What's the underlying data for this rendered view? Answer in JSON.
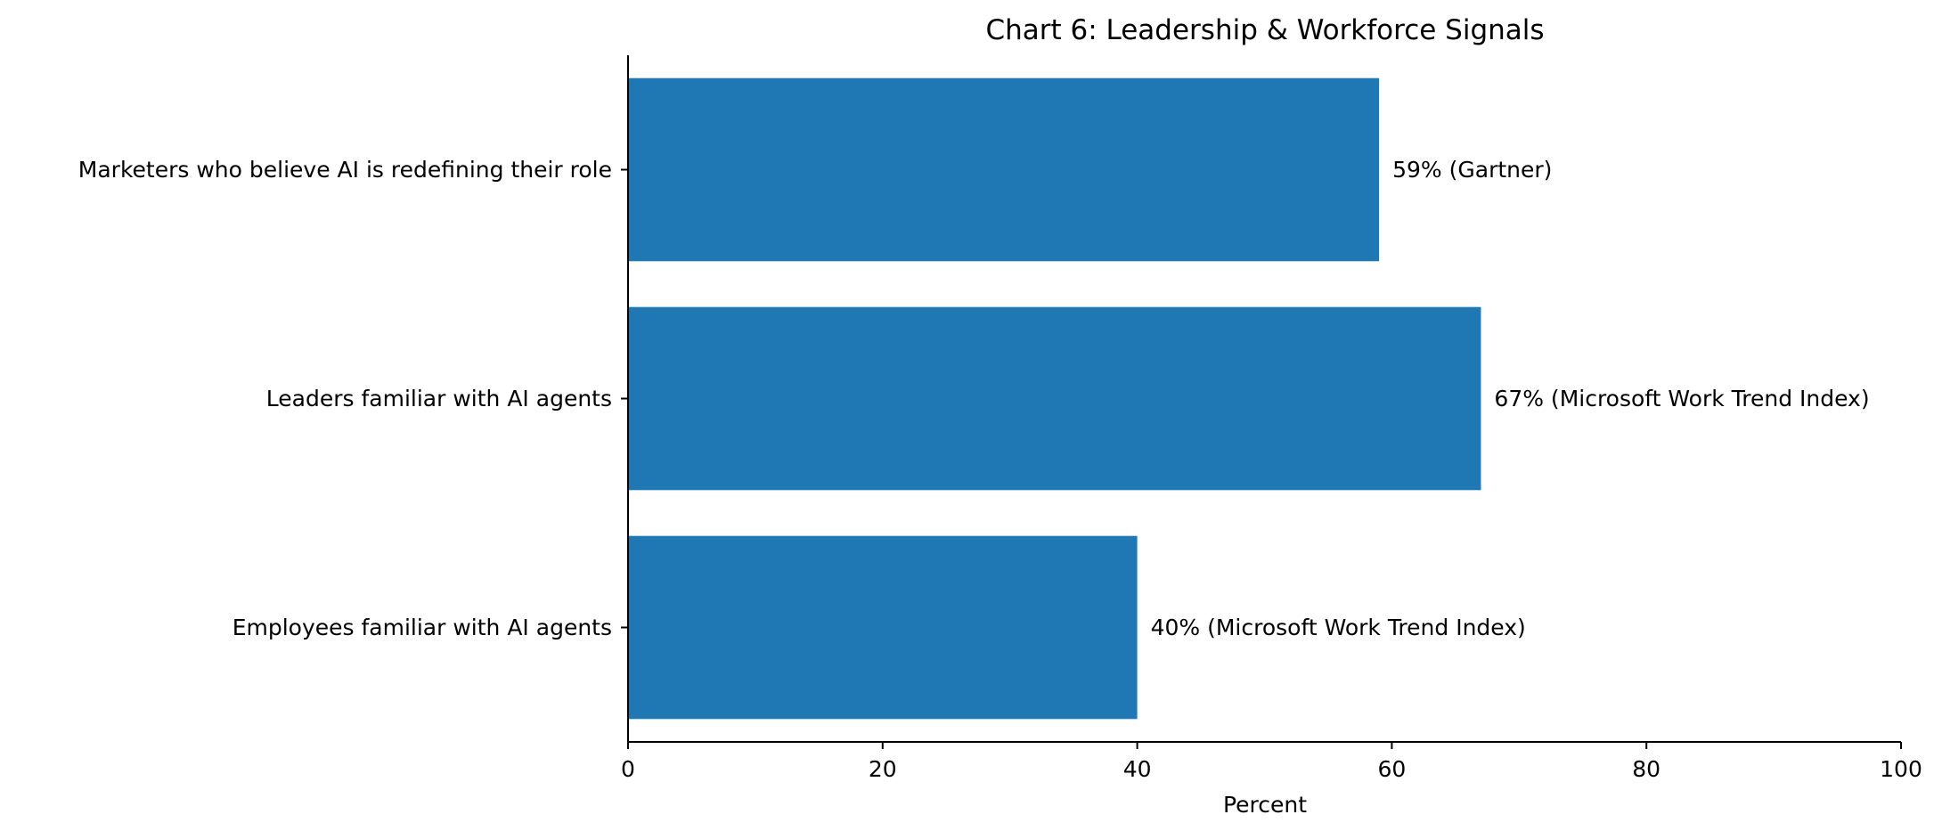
{
  "chart_data": {
    "type": "bar",
    "orientation": "horizontal",
    "title": "Chart 6: Leadership & Workforce Signals",
    "xlabel": "Percent",
    "ylabel": "",
    "xlim": [
      0,
      100
    ],
    "x_ticks": [
      0,
      20,
      40,
      60,
      80,
      100
    ],
    "x_tick_labels": [
      "0",
      "20",
      "40",
      "60",
      "80",
      "100"
    ],
    "grid": false,
    "legend": "none",
    "bar_color": "#1f77b4",
    "categories": [
      "Marketers who believe AI is redefining their role",
      "Leaders familiar with AI agents",
      "Employees familiar with AI agents"
    ],
    "values": [
      59,
      67,
      40
    ],
    "data_labels": [
      "59% (Gartner)",
      "67% (Microsoft Work Trend Index)",
      "40% (Microsoft Work Trend Index)"
    ]
  }
}
